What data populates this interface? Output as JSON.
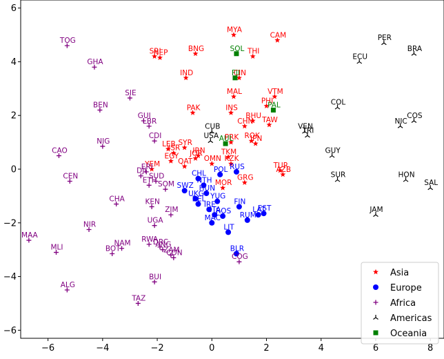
{
  "chart_data": {
    "type": "scatter",
    "title": "",
    "xlabel": "",
    "ylabel": "",
    "xlim": [
      -7,
      8.5
    ],
    "ylim": [
      -6.3,
      6.3
    ],
    "xticks": [
      -6,
      -4,
      -2,
      0,
      2,
      4,
      6,
      8
    ],
    "yticks": [
      -6,
      -4,
      -2,
      0,
      2,
      4,
      6
    ],
    "xtick_labels": [
      "−6",
      "−4",
      "−2",
      "0",
      "2",
      "4",
      "6",
      "8"
    ],
    "ytick_labels": [
      "−6",
      "−4",
      "−2",
      "0",
      "2",
      "4",
      "6"
    ],
    "grid": false,
    "legend_position": "lower-right",
    "series": [
      {
        "name": "Asia",
        "color": "#ff0000",
        "marker": "star",
        "points": [
          {
            "label": "MYA",
            "x": 0.8,
            "y": 5.0
          },
          {
            "label": "CAM",
            "x": 2.4,
            "y": 4.8
          },
          {
            "label": "SRI",
            "x": -2.1,
            "y": 4.2
          },
          {
            "label": "NEP",
            "x": -1.9,
            "y": 4.15
          },
          {
            "label": "BNG",
            "x": -0.6,
            "y": 4.3
          },
          {
            "label": "THI",
            "x": 1.5,
            "y": 4.2
          },
          {
            "label": "CIN",
            "x": 1.0,
            "y": 3.4
          },
          {
            "label": "IND",
            "x": -0.95,
            "y": 3.4
          },
          {
            "label": "VTM",
            "x": 2.3,
            "y": 2.7
          },
          {
            "label": "MAL",
            "x": 0.8,
            "y": 2.7
          },
          {
            "label": "PHI",
            "x": 2.0,
            "y": 2.35
          },
          {
            "label": "PAK",
            "x": -0.7,
            "y": 2.1
          },
          {
            "label": "INS",
            "x": 0.7,
            "y": 2.1
          },
          {
            "label": "BHU",
            "x": 1.5,
            "y": 1.8
          },
          {
            "label": "TAW",
            "x": 2.1,
            "y": 1.65
          },
          {
            "label": "CHN",
            "x": 1.2,
            "y": 1.6
          },
          {
            "label": "ROK",
            "x": 1.45,
            "y": 1.05
          },
          {
            "label": "JPN",
            "x": 1.6,
            "y": 0.95
          },
          {
            "label": "PRK",
            "x": 0.7,
            "y": 1.0
          },
          {
            "label": "LEB",
            "x": -1.6,
            "y": 0.75
          },
          {
            "label": "SYR",
            "x": -1.0,
            "y": 0.8
          },
          {
            "label": "ISR",
            "x": -1.4,
            "y": 0.6
          },
          {
            "label": "IRN",
            "x": -0.5,
            "y": 0.5
          },
          {
            "label": "JOR",
            "x": -0.6,
            "y": 0.4
          },
          {
            "label": "EGY",
            "x": -1.5,
            "y": 0.3
          },
          {
            "label": "QAT",
            "x": -1.0,
            "y": 0.1
          },
          {
            "label": "YEM",
            "x": -2.2,
            "y": 0.0
          },
          {
            "label": "TKM",
            "x": 0.6,
            "y": 0.45
          },
          {
            "label": "KZK",
            "x": 0.7,
            "y": 0.2
          },
          {
            "label": "OMN",
            "x": 0.0,
            "y": 0.2
          },
          {
            "label": "TUR",
            "x": 2.5,
            "y": -0.05
          },
          {
            "label": "AZB",
            "x": 2.6,
            "y": -0.2
          },
          {
            "label": "MOR",
            "x": 0.4,
            "y": -0.7
          },
          {
            "label": "GRG",
            "x": 1.2,
            "y": -0.5
          }
        ]
      },
      {
        "name": "Europe",
        "color": "#0000ff",
        "marker": "circle",
        "points": [
          {
            "label": "RUS",
            "x": 0.9,
            "y": -0.1
          },
          {
            "label": "SWZ",
            "x": -1.0,
            "y": -0.8
          },
          {
            "label": "CHL",
            "x": -0.5,
            "y": -0.35
          },
          {
            "label": "POL",
            "x": 0.3,
            "y": -0.2
          },
          {
            "label": "NTH",
            "x": -0.3,
            "y": -0.6
          },
          {
            "label": "UKG",
            "x": -0.6,
            "y": -1.1
          },
          {
            "label": "HUN",
            "x": -0.2,
            "y": -0.9
          },
          {
            "label": "YUG",
            "x": 0.2,
            "y": -1.2
          },
          {
            "label": "BEL",
            "x": -0.5,
            "y": -1.3
          },
          {
            "label": "ROS",
            "x": 0.4,
            "y": -1.75
          },
          {
            "label": "ITA",
            "x": 0.1,
            "y": -1.7
          },
          {
            "label": "MAC",
            "x": 0.0,
            "y": -2.0
          },
          {
            "label": "LIT",
            "x": 0.6,
            "y": -2.35
          },
          {
            "label": "FIN",
            "x": 1.0,
            "y": -1.4
          },
          {
            "label": "LAT",
            "x": 1.7,
            "y": -1.7
          },
          {
            "label": "IRE",
            "x": -0.1,
            "y": -1.5
          },
          {
            "label": "EST",
            "x": 1.9,
            "y": -1.65
          },
          {
            "label": "RUM",
            "x": 1.3,
            "y": -1.9
          },
          {
            "label": "BLR",
            "x": 0.9,
            "y": -3.15
          }
        ]
      },
      {
        "name": "Africa",
        "color": "#800080",
        "marker": "plus",
        "points": [
          {
            "label": "TOG",
            "x": -5.3,
            "y": 4.6
          },
          {
            "label": "GHA",
            "x": -4.3,
            "y": 3.8
          },
          {
            "label": "SIE",
            "x": -3.0,
            "y": 2.65
          },
          {
            "label": "BEN",
            "x": -4.1,
            "y": 2.2
          },
          {
            "label": "GUI",
            "x": -2.5,
            "y": 1.8
          },
          {
            "label": "LBR",
            "x": -2.3,
            "y": 1.6
          },
          {
            "label": "CDI",
            "x": -2.1,
            "y": 1.05
          },
          {
            "label": "NIG",
            "x": -4.0,
            "y": 0.85
          },
          {
            "label": "CAO",
            "x": -5.6,
            "y": 0.5
          },
          {
            "label": "CEN",
            "x": -5.2,
            "y": -0.45
          },
          {
            "label": "DJI",
            "x": -2.6,
            "y": -0.25
          },
          {
            "label": "ERI",
            "x": -2.4,
            "y": -0.1
          },
          {
            "label": "SUD",
            "x": -2.05,
            "y": -0.45
          },
          {
            "label": "ETH",
            "x": -2.3,
            "y": -0.6
          },
          {
            "label": "SOM",
            "x": -1.7,
            "y": -0.75
          },
          {
            "label": "CHA",
            "x": -3.5,
            "y": -1.3
          },
          {
            "label": "KEN",
            "x": -2.2,
            "y": -1.4
          },
          {
            "label": "ZIM",
            "x": -1.5,
            "y": -1.7
          },
          {
            "label": "UGA",
            "x": -2.1,
            "y": -2.1
          },
          {
            "label": "NIR",
            "x": -4.5,
            "y": -2.25
          },
          {
            "label": "MAA",
            "x": -6.7,
            "y": -2.65
          },
          {
            "label": "MLI",
            "x": -5.7,
            "y": -3.1
          },
          {
            "label": "NAM",
            "x": -3.3,
            "y": -2.95
          },
          {
            "label": "BOT",
            "x": -3.65,
            "y": -3.15
          },
          {
            "label": "RWA",
            "x": -2.3,
            "y": -2.8
          },
          {
            "label": "DRC",
            "x": -1.9,
            "y": -2.9
          },
          {
            "label": "ANG",
            "x": -1.8,
            "y": -3.0
          },
          {
            "label": "ZAM",
            "x": -1.5,
            "y": -3.2
          },
          {
            "label": "CON",
            "x": -1.4,
            "y": -3.3
          },
          {
            "label": "BUI",
            "x": -2.1,
            "y": -4.2
          },
          {
            "label": "ALG",
            "x": -5.3,
            "y": -4.5
          },
          {
            "label": "TAZ",
            "x": -2.7,
            "y": -5.0
          },
          {
            "label": "COG",
            "x": 1.0,
            "y": -3.45
          }
        ]
      },
      {
        "name": "Americas",
        "color": "#000000",
        "marker": "tri_up",
        "points": [
          {
            "label": "PER",
            "x": 6.3,
            "y": 4.7
          },
          {
            "label": "BRA",
            "x": 7.4,
            "y": 4.3
          },
          {
            "label": "ECU",
            "x": 5.4,
            "y": 4.0
          },
          {
            "label": "COL",
            "x": 4.6,
            "y": 2.3
          },
          {
            "label": "NIC",
            "x": 6.9,
            "y": 1.6
          },
          {
            "label": "COS",
            "x": 7.4,
            "y": 1.8
          },
          {
            "label": "VEN",
            "x": 3.4,
            "y": 1.4
          },
          {
            "label": "TRI",
            "x": 3.5,
            "y": 1.25
          },
          {
            "label": "CUB",
            "x": 0.0,
            "y": 1.4
          },
          {
            "label": "USA",
            "x": -0.05,
            "y": 1.05
          },
          {
            "label": "GUY",
            "x": 4.4,
            "y": 0.5
          },
          {
            "label": "SUR",
            "x": 4.6,
            "y": -0.4
          },
          {
            "label": "HON",
            "x": 7.1,
            "y": -0.4
          },
          {
            "label": "SAL",
            "x": 8.0,
            "y": -0.7
          },
          {
            "label": "JAM",
            "x": 6.0,
            "y": -1.7
          }
        ]
      },
      {
        "name": "Oceania",
        "color": "#008000",
        "marker": "square",
        "points": [
          {
            "label": "SOL",
            "x": 0.9,
            "y": 4.3
          },
          {
            "label": "FJI",
            "x": 0.85,
            "y": 3.4
          },
          {
            "label": "PAL",
            "x": 2.25,
            "y": 2.2
          },
          {
            "label": "AUL",
            "x": 0.5,
            "y": 0.95
          }
        ]
      }
    ]
  }
}
